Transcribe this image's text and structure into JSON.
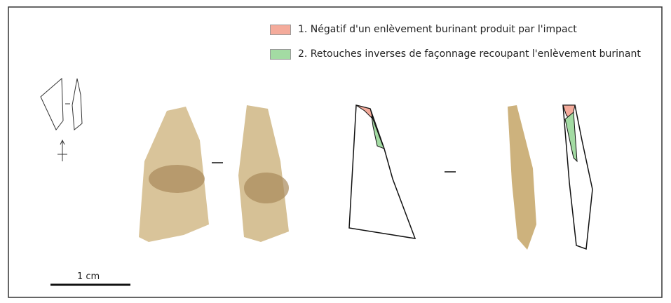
{
  "legend": [
    {
      "label": "1. Négatif d'un enlèvement burinant produit par l'impact",
      "color": "#f4ab9b"
    },
    {
      "label": "2. Retouches inverses de façonnage recoupant l'enlèvement burinant",
      "color": "#a3dba3"
    }
  ],
  "scale_bar": {
    "label": "1 cm"
  }
}
